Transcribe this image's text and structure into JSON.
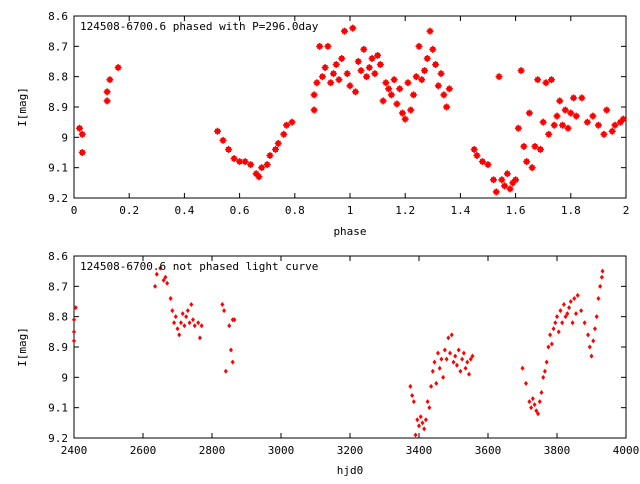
{
  "chart_data": [
    {
      "type": "scatter",
      "title": "124508-6700.6 phased with P=296.0day",
      "xlabel": "phase",
      "ylabel": "I[mag]",
      "xlim": [
        0,
        2
      ],
      "ylim": [
        9.2,
        8.6
      ],
      "y_inverted": true,
      "grid": false,
      "marker_color": "#ff0000",
      "xticks": [
        0,
        0.2,
        0.4,
        0.6,
        0.8,
        1,
        1.2,
        1.4,
        1.6,
        1.8,
        2
      ],
      "xtick_labels": [
        "0",
        "0.2",
        "0.4",
        "0.6",
        "0.8",
        "1",
        "1.2",
        "1.4",
        "1.6",
        "1.8",
        "2"
      ],
      "yticks": [
        8.6,
        8.7,
        8.8,
        8.9,
        9,
        9.1,
        9.2
      ],
      "ytick_labels": [
        "8.6",
        "8.7",
        "8.8",
        "8.9",
        "9",
        "9.1",
        "9.2"
      ],
      "points": [
        [
          0.02,
          8.97
        ],
        [
          0.03,
          9.05
        ],
        [
          0.03,
          8.99
        ],
        [
          0.12,
          8.85
        ],
        [
          0.12,
          8.88
        ],
        [
          0.13,
          8.81
        ],
        [
          0.16,
          8.77
        ],
        [
          0.52,
          8.98
        ],
        [
          0.54,
          9.01
        ],
        [
          0.56,
          9.04
        ],
        [
          0.58,
          9.07
        ],
        [
          0.6,
          9.08
        ],
        [
          0.62,
          9.08
        ],
        [
          0.64,
          9.09
        ],
        [
          0.66,
          9.12
        ],
        [
          0.67,
          9.13
        ],
        [
          0.68,
          9.1
        ],
        [
          0.7,
          9.09
        ],
        [
          0.71,
          9.06
        ],
        [
          0.73,
          9.04
        ],
        [
          0.74,
          9.02
        ],
        [
          0.76,
          8.99
        ],
        [
          0.77,
          8.96
        ],
        [
          0.79,
          8.95
        ],
        [
          0.87,
          8.91
        ],
        [
          0.87,
          8.86
        ],
        [
          0.88,
          8.82
        ],
        [
          0.89,
          8.7
        ],
        [
          0.9,
          8.8
        ],
        [
          0.91,
          8.77
        ],
        [
          0.92,
          8.7
        ],
        [
          0.93,
          8.82
        ],
        [
          0.94,
          8.79
        ],
        [
          0.95,
          8.76
        ],
        [
          0.96,
          8.81
        ],
        [
          0.97,
          8.74
        ],
        [
          0.98,
          8.65
        ],
        [
          0.99,
          8.79
        ],
        [
          1.0,
          8.83
        ],
        [
          1.01,
          8.64
        ],
        [
          1.02,
          8.85
        ],
        [
          1.03,
          8.75
        ],
        [
          1.04,
          8.78
        ],
        [
          1.05,
          8.71
        ],
        [
          1.06,
          8.8
        ],
        [
          1.07,
          8.77
        ],
        [
          1.08,
          8.74
        ],
        [
          1.09,
          8.79
        ],
        [
          1.1,
          8.73
        ],
        [
          1.11,
          8.76
        ],
        [
          1.12,
          8.88
        ],
        [
          1.13,
          8.82
        ],
        [
          1.14,
          8.84
        ],
        [
          1.15,
          8.86
        ],
        [
          1.16,
          8.81
        ],
        [
          1.17,
          8.89
        ],
        [
          1.18,
          8.84
        ],
        [
          1.19,
          8.92
        ],
        [
          1.2,
          8.94
        ],
        [
          1.21,
          8.82
        ],
        [
          1.22,
          8.91
        ],
        [
          1.23,
          8.86
        ],
        [
          1.24,
          8.8
        ],
        [
          1.25,
          8.7
        ],
        [
          1.26,
          8.81
        ],
        [
          1.27,
          8.78
        ],
        [
          1.28,
          8.74
        ],
        [
          1.29,
          8.65
        ],
        [
          1.3,
          8.71
        ],
        [
          1.31,
          8.76
        ],
        [
          1.32,
          8.83
        ],
        [
          1.33,
          8.79
        ],
        [
          1.34,
          8.86
        ],
        [
          1.35,
          8.9
        ],
        [
          1.36,
          8.84
        ],
        [
          1.45,
          9.04
        ],
        [
          1.46,
          9.06
        ],
        [
          1.48,
          9.08
        ],
        [
          1.5,
          9.09
        ],
        [
          1.52,
          9.14
        ],
        [
          1.53,
          9.18
        ],
        [
          1.54,
          8.8
        ],
        [
          1.55,
          9.14
        ],
        [
          1.56,
          9.16
        ],
        [
          1.57,
          9.12
        ],
        [
          1.58,
          9.17
        ],
        [
          1.59,
          9.15
        ],
        [
          1.6,
          9.14
        ],
        [
          1.61,
          8.97
        ],
        [
          1.62,
          8.78
        ],
        [
          1.63,
          9.03
        ],
        [
          1.64,
          9.08
        ],
        [
          1.65,
          8.92
        ],
        [
          1.66,
          9.1
        ],
        [
          1.67,
          9.03
        ],
        [
          1.68,
          8.81
        ],
        [
          1.69,
          9.04
        ],
        [
          1.7,
          8.95
        ],
        [
          1.71,
          8.82
        ],
        [
          1.72,
          8.99
        ],
        [
          1.73,
          8.81
        ],
        [
          1.74,
          8.96
        ],
        [
          1.75,
          8.93
        ],
        [
          1.76,
          8.88
        ],
        [
          1.77,
          8.96
        ],
        [
          1.78,
          8.91
        ],
        [
          1.79,
          8.97
        ],
        [
          1.8,
          8.92
        ],
        [
          1.81,
          8.87
        ],
        [
          1.82,
          8.93
        ],
        [
          1.84,
          8.87
        ],
        [
          1.86,
          8.95
        ],
        [
          1.88,
          8.93
        ],
        [
          1.9,
          8.96
        ],
        [
          1.92,
          8.99
        ],
        [
          1.93,
          8.91
        ],
        [
          1.95,
          8.98
        ],
        [
          1.96,
          8.96
        ],
        [
          1.98,
          8.95
        ],
        [
          1.99,
          8.94
        ]
      ]
    },
    {
      "type": "scatter",
      "title": "124508-6700.6 not phased light curve",
      "xlabel": "hjd0",
      "ylabel": "I[mag]",
      "xlim": [
        2400,
        4000
      ],
      "ylim": [
        9.2,
        8.6
      ],
      "y_inverted": true,
      "grid": false,
      "marker_color": "#ff0000",
      "xticks": [
        2400,
        2600,
        2800,
        3000,
        3200,
        3400,
        3600,
        3800,
        4000
      ],
      "xtick_labels": [
        "2400",
        "2600",
        "2800",
        "3000",
        "3200",
        "3400",
        "3600",
        "3800",
        "4000"
      ],
      "yticks": [
        8.6,
        8.7,
        8.8,
        8.9,
        9,
        9.1,
        9.2
      ],
      "ytick_labels": [
        "8.6",
        "8.7",
        "8.8",
        "8.9",
        "9",
        "9.1",
        "9.2"
      ],
      "points": [
        [
          2400,
          8.85
        ],
        [
          2400,
          8.88
        ],
        [
          2400,
          8.81
        ],
        [
          2405,
          8.77
        ],
        [
          2635,
          8.7
        ],
        [
          2640,
          8.66
        ],
        [
          2650,
          8.64
        ],
        [
          2660,
          8.68
        ],
        [
          2665,
          8.67
        ],
        [
          2670,
          8.69
        ],
        [
          2680,
          8.74
        ],
        [
          2685,
          8.78
        ],
        [
          2690,
          8.82
        ],
        [
          2695,
          8.8
        ],
        [
          2700,
          8.84
        ],
        [
          2705,
          8.86
        ],
        [
          2710,
          8.82
        ],
        [
          2715,
          8.79
        ],
        [
          2720,
          8.83
        ],
        [
          2725,
          8.8
        ],
        [
          2730,
          8.78
        ],
        [
          2735,
          8.82
        ],
        [
          2740,
          8.76
        ],
        [
          2745,
          8.81
        ],
        [
          2750,
          8.83
        ],
        [
          2760,
          8.82
        ],
        [
          2765,
          8.87
        ],
        [
          2770,
          8.83
        ],
        [
          2830,
          8.76
        ],
        [
          2835,
          8.78
        ],
        [
          2840,
          8.98
        ],
        [
          2850,
          8.83
        ],
        [
          2855,
          8.91
        ],
        [
          2860,
          8.81
        ],
        [
          2860,
          8.95
        ],
        [
          2865,
          8.81
        ],
        [
          3375,
          9.03
        ],
        [
          3380,
          9.06
        ],
        [
          3385,
          9.08
        ],
        [
          3390,
          9.19
        ],
        [
          3395,
          9.14
        ],
        [
          3400,
          9.16
        ],
        [
          3405,
          9.13
        ],
        [
          3410,
          9.15
        ],
        [
          3415,
          9.17
        ],
        [
          3420,
          9.14
        ],
        [
          3425,
          9.08
        ],
        [
          3430,
          9.1
        ],
        [
          3435,
          9.03
        ],
        [
          3440,
          8.98
        ],
        [
          3445,
          8.95
        ],
        [
          3450,
          9.02
        ],
        [
          3455,
          8.92
        ],
        [
          3460,
          8.97
        ],
        [
          3465,
          8.94
        ],
        [
          3470,
          9.0
        ],
        [
          3475,
          8.91
        ],
        [
          3480,
          8.94
        ],
        [
          3485,
          8.87
        ],
        [
          3490,
          8.92
        ],
        [
          3495,
          8.86
        ],
        [
          3500,
          8.95
        ],
        [
          3505,
          8.93
        ],
        [
          3510,
          8.96
        ],
        [
          3515,
          8.91
        ],
        [
          3520,
          8.98
        ],
        [
          3525,
          8.94
        ],
        [
          3530,
          8.92
        ],
        [
          3535,
          8.97
        ],
        [
          3540,
          8.95
        ],
        [
          3545,
          8.99
        ],
        [
          3550,
          8.94
        ],
        [
          3555,
          8.93
        ],
        [
          3700,
          8.97
        ],
        [
          3710,
          9.02
        ],
        [
          3720,
          9.08
        ],
        [
          3725,
          9.1
        ],
        [
          3730,
          9.07
        ],
        [
          3735,
          9.09
        ],
        [
          3740,
          9.11
        ],
        [
          3745,
          9.12
        ],
        [
          3750,
          9.08
        ],
        [
          3755,
          9.05
        ],
        [
          3760,
          9.0
        ],
        [
          3765,
          8.98
        ],
        [
          3770,
          8.95
        ],
        [
          3775,
          8.9
        ],
        [
          3780,
          8.86
        ],
        [
          3785,
          8.89
        ],
        [
          3790,
          8.84
        ],
        [
          3795,
          8.82
        ],
        [
          3800,
          8.8
        ],
        [
          3805,
          8.85
        ],
        [
          3810,
          8.78
        ],
        [
          3815,
          8.82
        ],
        [
          3820,
          8.76
        ],
        [
          3825,
          8.8
        ],
        [
          3830,
          8.79
        ],
        [
          3835,
          8.77
        ],
        [
          3840,
          8.75
        ],
        [
          3845,
          8.82
        ],
        [
          3850,
          8.74
        ],
        [
          3855,
          8.79
        ],
        [
          3860,
          8.73
        ],
        [
          3870,
          8.78
        ],
        [
          3880,
          8.82
        ],
        [
          3890,
          8.86
        ],
        [
          3895,
          8.9
        ],
        [
          3900,
          8.93
        ],
        [
          3905,
          8.88
        ],
        [
          3910,
          8.84
        ],
        [
          3915,
          8.8
        ],
        [
          3920,
          8.74
        ],
        [
          3925,
          8.7
        ],
        [
          3930,
          8.67
        ],
        [
          3932,
          8.65
        ]
      ]
    }
  ]
}
